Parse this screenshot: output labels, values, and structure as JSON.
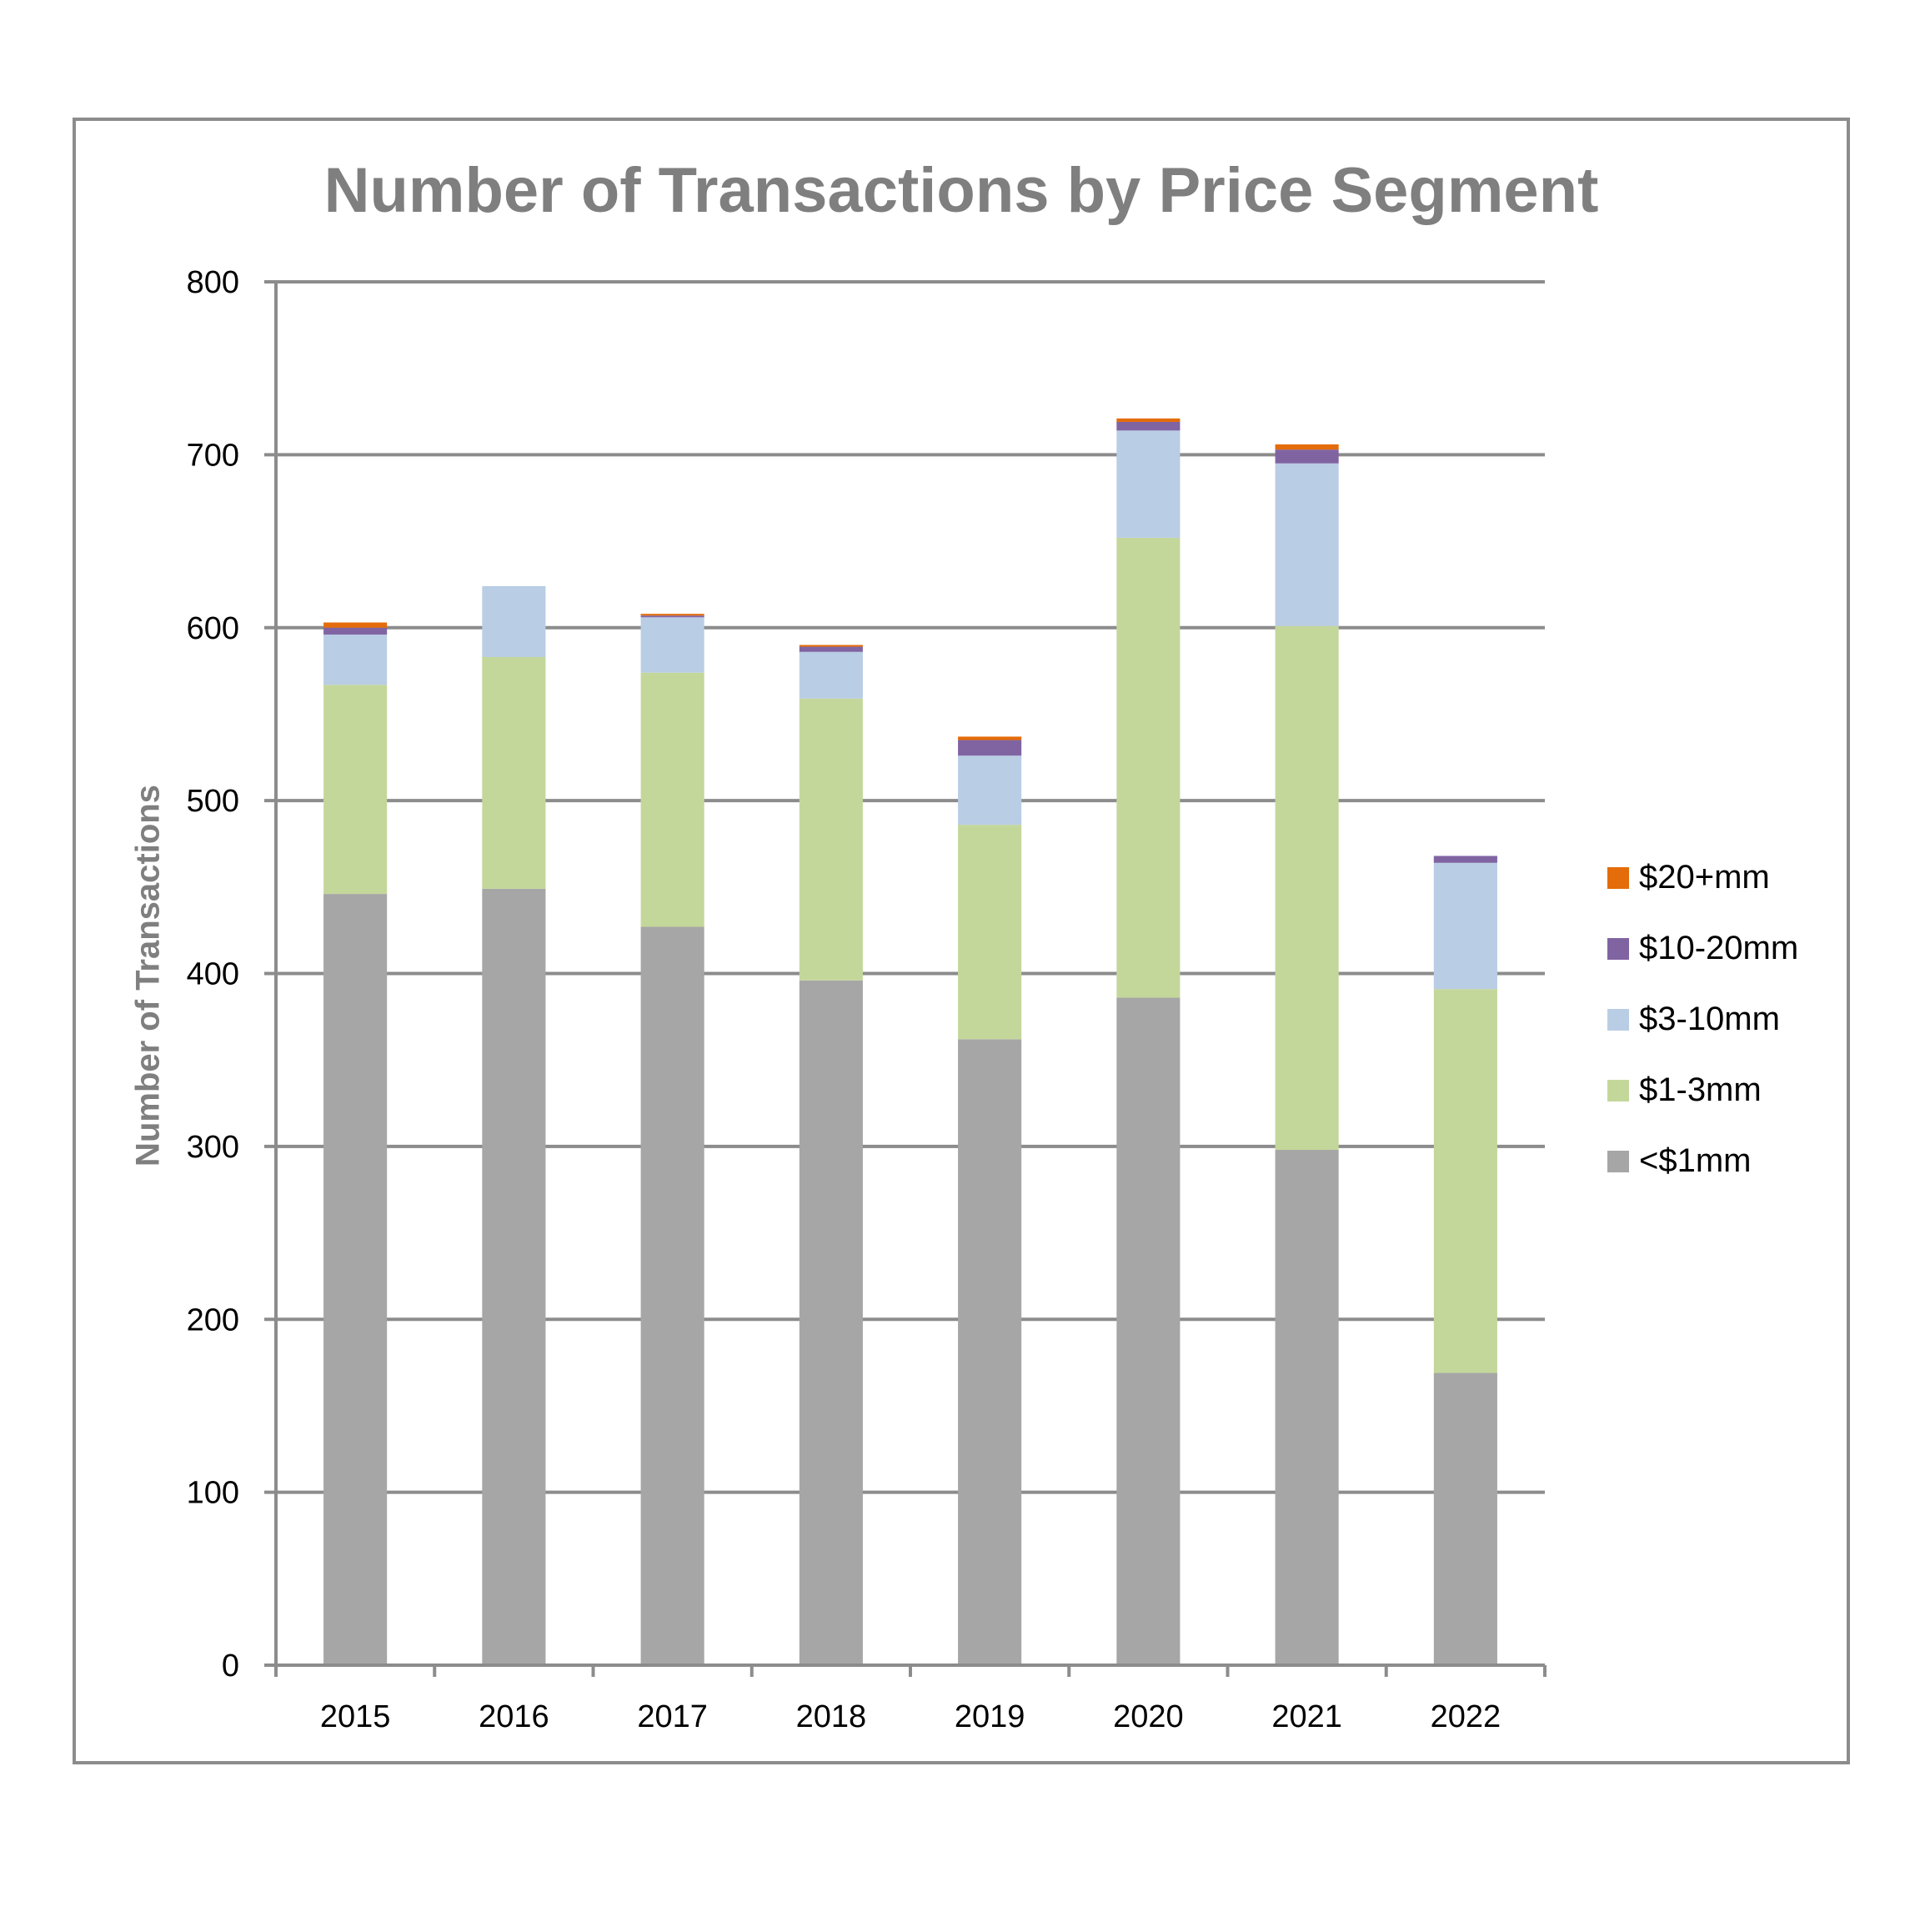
{
  "chart_data": {
    "type": "bar",
    "stacked": true,
    "title": "Number of Transactions by Price Segment",
    "xlabel": "",
    "ylabel": "Number of Transactions",
    "ylim": [
      0,
      800
    ],
    "yticks": [
      0,
      100,
      200,
      300,
      400,
      500,
      600,
      700,
      800
    ],
    "grid": true,
    "legend_position": "right",
    "categories": [
      "2015",
      "2016",
      "2017",
      "2018",
      "2019",
      "2020",
      "2021",
      "2022"
    ],
    "series": [
      {
        "name": "<$1mm",
        "color": "#a6a6a6",
        "values": [
          446,
          449,
          427,
          396,
          362,
          386,
          298,
          169
        ]
      },
      {
        "name": "$1-3mm",
        "color": "#c4d79b",
        "values": [
          121,
          134,
          147,
          163,
          124,
          266,
          303,
          222
        ]
      },
      {
        "name": "$3-10mm",
        "color": "#b9cde5",
        "values": [
          29,
          41,
          32,
          27,
          40,
          62,
          94,
          73
        ]
      },
      {
        "name": "$10-20mm",
        "color": "#8064a2",
        "values": [
          4,
          0,
          1,
          3,
          9,
          5,
          8,
          4
        ]
      },
      {
        "name": "$20+mm",
        "color": "#e46c0a",
        "values": [
          3,
          0,
          1,
          1,
          2,
          2,
          3,
          0
        ]
      }
    ]
  }
}
